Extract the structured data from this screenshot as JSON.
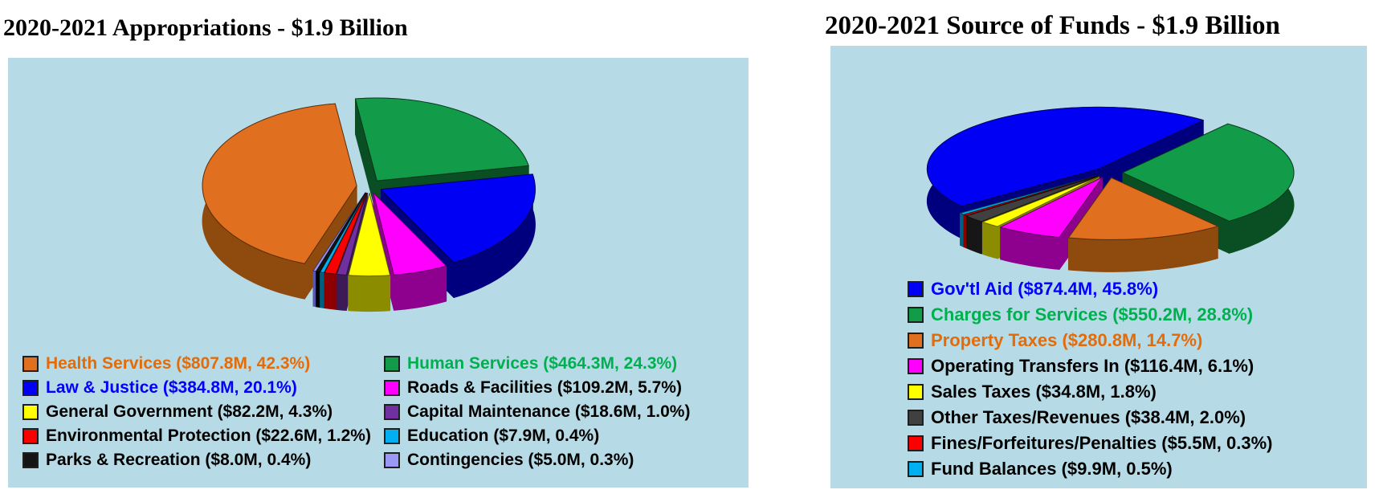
{
  "chart_data": [
    {
      "type": "pie",
      "style": "3d-exploded",
      "title": "2020-2021 Appropriations - $1.9 Billion",
      "total_label": "$1.9 Billion",
      "background": "#B6DBE6",
      "start_angle_deg": 199.7,
      "clockwise": true,
      "slices": [
        {
          "label": "Health Services",
          "value_m": 807.8,
          "pct": 42.3,
          "color": "#E06F1F",
          "dark": "#8F4A0E"
        },
        {
          "label": "Human Services",
          "value_m": 464.3,
          "pct": 24.3,
          "color": "#129C49",
          "dark": "#0A4E24"
        },
        {
          "label": "Law & Justice",
          "value_m": 384.8,
          "pct": 20.1,
          "color": "#0000F5",
          "dark": "#00007E"
        },
        {
          "label": "Roads & Facilities",
          "value_m": 109.2,
          "pct": 5.7,
          "color": "#FF00FF",
          "dark": "#8E008E"
        },
        {
          "label": "General Government",
          "value_m": 82.2,
          "pct": 4.3,
          "color": "#FFFF00",
          "dark": "#8C8C00"
        },
        {
          "label": "Capital Maintenance",
          "value_m": 18.6,
          "pct": 1.0,
          "color": "#7030A0",
          "dark": "#3C1A56"
        },
        {
          "label": "Environmental Protection",
          "value_m": 22.6,
          "pct": 1.2,
          "color": "#FB0000",
          "dark": "#8E0000"
        },
        {
          "label": "Education",
          "value_m": 7.9,
          "pct": 0.4,
          "color": "#00B0F0",
          "dark": "#00607F"
        },
        {
          "label": "Parks & Recreation",
          "value_m": 8.0,
          "pct": 0.4,
          "color": "#141414",
          "dark": "#000000"
        },
        {
          "label": "Contingencies",
          "value_m": 5.0,
          "pct": 0.3,
          "color": "#9999F5",
          "dark": "#5858B0"
        }
      ],
      "legend": {
        "position": "bottom",
        "columns": 2,
        "col1": [
          {
            "text": "Health Services ($807.8M, 42.3%)",
            "color": "#E06F1F",
            "text_color": "#E36C0A"
          },
          {
            "text": "Law & Justice ($384.8M, 20.1%)",
            "color": "#0000F5",
            "text_color": "#0000FF"
          },
          {
            "text": "General Government ($82.2M, 4.3%)",
            "color": "#FFFF00",
            "text_color": "#000000"
          },
          {
            "text": "Environmental Protection ($22.6M, 1.2%)",
            "color": "#FB0000",
            "text_color": "#000000"
          },
          {
            "text": "Parks & Recreation ($8.0M, 0.4%)",
            "color": "#141414",
            "text_color": "#000000"
          }
        ],
        "col2": [
          {
            "text": "Human Services ($464.3M, 24.3%)",
            "color": "#129C49",
            "text_color": "#00B050"
          },
          {
            "text": "Roads & Facilities ($109.2M, 5.7%)",
            "color": "#FF00FF",
            "text_color": "#000000"
          },
          {
            "text": "Capital Maintenance ($18.6M, 1.0%)",
            "color": "#7030A0",
            "text_color": "#000000"
          },
          {
            "text": "Education ($7.9M, 0.4%)",
            "color": "#00B0F0",
            "text_color": "#000000"
          },
          {
            "text": "Contingencies ($5.0M, 0.3%)",
            "color": "#9999F5",
            "text_color": "#000000"
          }
        ]
      }
    },
    {
      "type": "pie",
      "style": "3d-exploded",
      "title": "2020-2021 Source of Funds - $1.9 Billion",
      "total_label": "$1.9 Billion",
      "background": "#B6DBE6",
      "start_angle_deg": 233,
      "clockwise": true,
      "slices": [
        {
          "label": "Gov'tl Aid",
          "value_m": 874.4,
          "pct": 45.8,
          "color": "#0000F5",
          "dark": "#00007E"
        },
        {
          "label": "Charges for Services",
          "value_m": 550.2,
          "pct": 28.8,
          "color": "#129C49",
          "dark": "#0A4E24"
        },
        {
          "label": "Property Taxes",
          "value_m": 280.8,
          "pct": 14.7,
          "color": "#E06F1F",
          "dark": "#8F4A0E"
        },
        {
          "label": "Operating Transfers In",
          "value_m": 116.4,
          "pct": 6.1,
          "color": "#FF00FF",
          "dark": "#8E008E"
        },
        {
          "label": "Sales Taxes",
          "value_m": 34.8,
          "pct": 1.8,
          "color": "#FFFF00",
          "dark": "#8C8C00"
        },
        {
          "label": "Other Taxes/Revenues",
          "value_m": 38.4,
          "pct": 2.0,
          "color": "#404040",
          "dark": "#161616"
        },
        {
          "label": "Fines/Forfeitures/Penalties",
          "value_m": 5.5,
          "pct": 0.3,
          "color": "#FB0000",
          "dark": "#8E0000"
        },
        {
          "label": "Fund Balances",
          "value_m": 9.9,
          "pct": 0.5,
          "color": "#00B0F0",
          "dark": "#00607F"
        }
      ],
      "legend": {
        "position": "bottom",
        "columns": 1,
        "items": [
          {
            "text": "Gov'tl Aid ($874.4M, 45.8%)",
            "color": "#0000F5",
            "text_color": "#0000FF"
          },
          {
            "text": "Charges for Services ($550.2M, 28.8%)",
            "color": "#129C49",
            "text_color": "#00B050"
          },
          {
            "text": "Property Taxes ($280.8M, 14.7%)",
            "color": "#E06F1F",
            "text_color": "#E36C0A"
          },
          {
            "text": "Operating Transfers In ($116.4M, 6.1%)",
            "color": "#FF00FF",
            "text_color": "#000000"
          },
          {
            "text": "Sales Taxes ($34.8M, 1.8%)",
            "color": "#FFFF00",
            "text_color": "#000000"
          },
          {
            "text": "Other Taxes/Revenues ($38.4M, 2.0%)",
            "color": "#404040",
            "text_color": "#000000"
          },
          {
            "text": "Fines/Forfeitures/Penalties ($5.5M, 0.3%)",
            "color": "#FB0000",
            "text_color": "#000000"
          },
          {
            "text": "Fund Balances ($9.9M, 0.5%)",
            "color": "#00B0F0",
            "text_color": "#000000"
          }
        ]
      }
    }
  ]
}
